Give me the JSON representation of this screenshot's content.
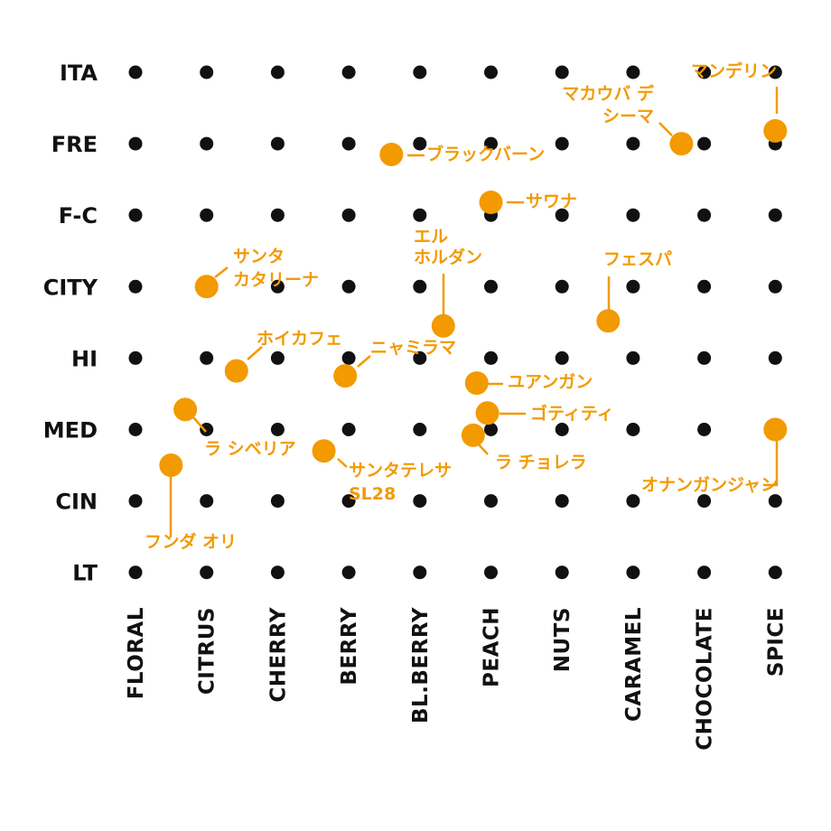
{
  "chart_data": {
    "type": "scatter",
    "title": "",
    "xlabel": "",
    "ylabel": "",
    "x_categories": [
      "FLORAL",
      "CITRUS",
      "CHERRY",
      "BERRY",
      "BL.BERRY",
      "PEACH",
      "NUTS",
      "CARAMEL",
      "CHOCOLATE",
      "SPICE"
    ],
    "y_categories": [
      "ITA",
      "FRE",
      "F-C",
      "CITY",
      "HI",
      "MED",
      "CIN",
      "LT"
    ],
    "accent_color": "#f29a00",
    "grid_dot_color": "#111111",
    "series": [
      {
        "points": [
          {
            "label": "マンデリン",
            "x": 9.0,
            "y": 0.82
          },
          {
            "label": "マカウバ デ シーマ",
            "x": 7.68,
            "y": 1.0
          },
          {
            "label": "ブラックバーン",
            "x": 3.6,
            "y": 1.15
          },
          {
            "label": "サワナ",
            "x": 5.0,
            "y": 1.82
          },
          {
            "label": "サンタ カタリーナ",
            "x": 1.0,
            "y": 3.0
          },
          {
            "label": "エル ホルダン",
            "x": 4.33,
            "y": 3.55
          },
          {
            "label": "フェスパ",
            "x": 6.65,
            "y": 3.48
          },
          {
            "label": "ホイカフェ",
            "x": 1.42,
            "y": 4.18
          },
          {
            "label": "ニャミラマ",
            "x": 2.95,
            "y": 4.25
          },
          {
            "label": "ユアンガン",
            "x": 4.8,
            "y": 4.35
          },
          {
            "label": "ゴティティ",
            "x": 4.95,
            "y": 4.77
          },
          {
            "label": "ラ シベリア",
            "x": 0.7,
            "y": 4.72
          },
          {
            "label": "サンタテレサ SL28",
            "x": 2.65,
            "y": 5.3
          },
          {
            "label": "ラ チョレラ",
            "x": 4.75,
            "y": 5.08
          },
          {
            "label": "オナンガンジャン",
            "x": 9.0,
            "y": 5.0
          },
          {
            "label": "フンダ オリ",
            "x": 0.5,
            "y": 5.5
          }
        ]
      }
    ]
  }
}
